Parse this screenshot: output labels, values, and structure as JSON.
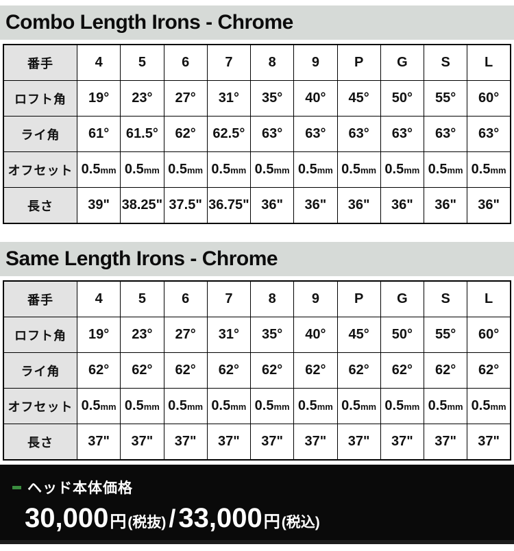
{
  "colors": {
    "title_band_bg": "#d6dad7",
    "header_cell_bg": "#e3e3e3",
    "footer_bg": "#0a0a0a",
    "green_dash": "#3a8c3f",
    "border": "#000000"
  },
  "sections": [
    {
      "title": "Combo Length Irons - Chrome",
      "table": {
        "rows": [
          {
            "label": "番手",
            "values": [
              "4",
              "5",
              "6",
              "7",
              "8",
              "9",
              "P",
              "G",
              "S",
              "L"
            ]
          },
          {
            "label": "ロフト角",
            "values": [
              "19°",
              "23°",
              "27°",
              "31°",
              "35°",
              "40°",
              "45°",
              "50°",
              "55°",
              "60°"
            ]
          },
          {
            "label": "ライ角",
            "values": [
              "61°",
              "61.5°",
              "62°",
              "62.5°",
              "63°",
              "63°",
              "63°",
              "63°",
              "63°",
              "63°"
            ]
          },
          {
            "label": "オフセット",
            "values": [
              "0.5mm",
              "0.5mm",
              "0.5mm",
              "0.5mm",
              "0.5mm",
              "0.5mm",
              "0.5mm",
              "0.5mm",
              "0.5mm",
              "0.5mm"
            ]
          },
          {
            "label": "長さ",
            "values": [
              "39\"",
              "38.25\"",
              "37.5\"",
              "36.75\"",
              "36\"",
              "36\"",
              "36\"",
              "36\"",
              "36\"",
              "36\""
            ]
          }
        ]
      }
    },
    {
      "title": "Same Length Irons - Chrome",
      "table": {
        "rows": [
          {
            "label": "番手",
            "values": [
              "4",
              "5",
              "6",
              "7",
              "8",
              "9",
              "P",
              "G",
              "S",
              "L"
            ]
          },
          {
            "label": "ロフト角",
            "values": [
              "19°",
              "23°",
              "27°",
              "31°",
              "35°",
              "40°",
              "45°",
              "50°",
              "55°",
              "60°"
            ]
          },
          {
            "label": "ライ角",
            "values": [
              "62°",
              "62°",
              "62°",
              "62°",
              "62°",
              "62°",
              "62°",
              "62°",
              "62°",
              "62°"
            ]
          },
          {
            "label": "オフセット",
            "values": [
              "0.5mm",
              "0.5mm",
              "0.5mm",
              "0.5mm",
              "0.5mm",
              "0.5mm",
              "0.5mm",
              "0.5mm",
              "0.5mm",
              "0.5mm"
            ]
          },
          {
            "label": "長さ",
            "values": [
              "37\"",
              "37\"",
              "37\"",
              "37\"",
              "37\"",
              "37\"",
              "37\"",
              "37\"",
              "37\"",
              "37\""
            ]
          }
        ]
      }
    }
  ],
  "footer": {
    "label": "ヘッド本体価格",
    "price_excl": "30,000",
    "price_excl_unit": "円",
    "price_excl_tax": "(税抜)",
    "separator": "/",
    "price_incl": "33,000",
    "price_incl_unit": "円",
    "price_incl_tax": "(税込)"
  }
}
